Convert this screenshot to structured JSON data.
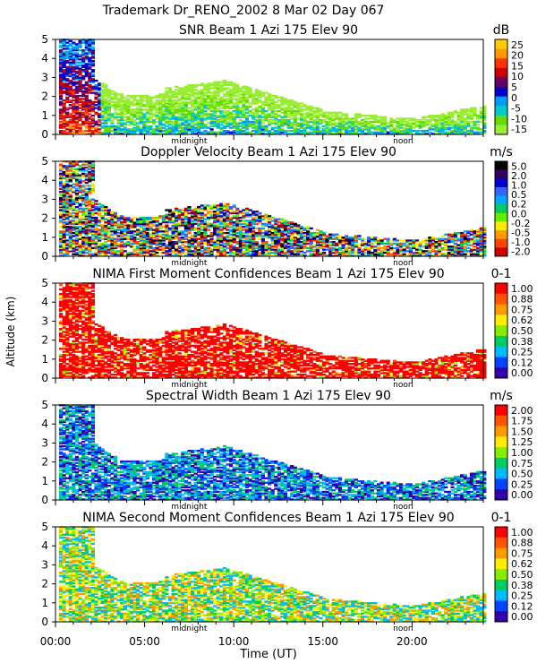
{
  "figure": {
    "header": "Trademark Dr_RENO_2002    8 Mar 02 Day 067",
    "ylabel": "Altitude (km)",
    "xlabel": "Time (UT)",
    "x_ticks": [
      "00:00",
      "05:00",
      "10:00",
      "15:00",
      "20:00"
    ],
    "y_ticks": [
      "0",
      "1",
      "2",
      "3",
      "4",
      "5"
    ],
    "marker_midnight": "midnight",
    "marker_noon": "noon"
  },
  "chart_data": [
    {
      "type": "heatmap",
      "title": "SNR Beam 1 Azi 175 Elev 90",
      "unit": "dB",
      "colorbar_labels": [
        "25",
        "20",
        "15",
        "10",
        "5",
        "0",
        "-5",
        "-10",
        "-15"
      ],
      "colorbar_colors": [
        "#ffcc00",
        "#ff9900",
        "#ff3300",
        "#cc0000",
        "#660066",
        "#0000cc",
        "#0099ff",
        "#00cccc",
        "#66dd00",
        "#99ee33"
      ],
      "xlim": [
        0,
        24
      ],
      "ylim": [
        0,
        5
      ]
    },
    {
      "type": "heatmap",
      "title": "Doppler Velocity Beam 1 Azi 175 Elev 90",
      "unit": "m/s",
      "colorbar_labels": [
        "5.0",
        "2.0",
        "1.0",
        "0.5",
        "0.2",
        "0.0",
        "-0.2",
        "-0.5",
        "-1.0",
        "-2.0"
      ],
      "colorbar_colors": [
        "#000000",
        "#330066",
        "#0000cc",
        "#3366ff",
        "#00aaff",
        "#00cc66",
        "#66ee00",
        "#ffee00",
        "#ff9900",
        "#ff4400",
        "#cc0000"
      ],
      "xlim": [
        0,
        24
      ],
      "ylim": [
        0,
        5
      ]
    },
    {
      "type": "heatmap",
      "title": "NIMA First Moment Confidences Beam 1 Azi 175 Elev 90",
      "unit": "0-1",
      "colorbar_labels": [
        "1.00",
        "0.88",
        "0.75",
        "0.62",
        "0.50",
        "0.38",
        "0.25",
        "0.12",
        "0.00"
      ],
      "colorbar_colors": [
        "#ff0000",
        "#ff5500",
        "#ff9900",
        "#ffee00",
        "#88ee00",
        "#00cc66",
        "#00bbff",
        "#0044ff",
        "#3300aa"
      ],
      "xlim": [
        0,
        24
      ],
      "ylim": [
        0,
        5
      ]
    },
    {
      "type": "heatmap",
      "title": "Spectral Width Beam 1 Azi 175 Elev 90",
      "unit": "m/s",
      "colorbar_labels": [
        "2.00",
        "1.75",
        "1.50",
        "1.25",
        "1.00",
        "0.75",
        "0.50",
        "0.25",
        "0.00"
      ],
      "colorbar_colors": [
        "#ff0000",
        "#ff5500",
        "#ff9900",
        "#ffee00",
        "#88ee00",
        "#00cc66",
        "#00bbff",
        "#0044ff",
        "#3300aa"
      ],
      "xlim": [
        0,
        24
      ],
      "ylim": [
        0,
        5
      ]
    },
    {
      "type": "heatmap",
      "title": "NIMA Second Moment Confidences Beam 1 Azi 175 Elev 90",
      "unit": "0-1",
      "colorbar_labels": [
        "1.00",
        "0.88",
        "0.75",
        "0.62",
        "0.50",
        "0.38",
        "0.25",
        "0.12",
        "0.00"
      ],
      "colorbar_colors": [
        "#ff0000",
        "#ff5500",
        "#ff9900",
        "#ffee00",
        "#88ee00",
        "#00cc66",
        "#00bbff",
        "#0044ff",
        "#3300aa"
      ],
      "xlim": [
        0,
        24
      ],
      "ylim": [
        0,
        5
      ]
    }
  ]
}
